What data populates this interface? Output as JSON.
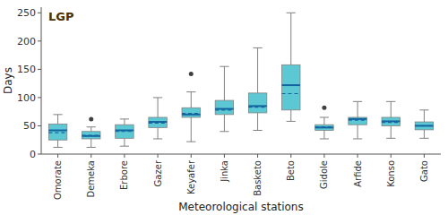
{
  "chart_data": {
    "type": "box",
    "xlabel": "Meteorological stations",
    "ylabel": "Days",
    "categories": [
      "Omorate",
      "Demeka",
      "Erbore",
      "Gazer",
      "Keyafer",
      "Jinka",
      "Basketo",
      "Beto",
      "Gidole",
      "Arfide",
      "Konso",
      "Gato"
    ],
    "boxes": [
      {
        "min": 12,
        "q1": 25,
        "median": 42,
        "mean": 38,
        "q3": 53,
        "max": 70,
        "outliers": []
      },
      {
        "min": 12,
        "q1": 27,
        "median": 32,
        "mean": 33,
        "q3": 40,
        "max": 48,
        "outliers": [
          62
        ]
      },
      {
        "min": 14,
        "q1": 28,
        "median": 42,
        "mean": 40,
        "q3": 52,
        "max": 62,
        "outliers": []
      },
      {
        "min": 27,
        "q1": 47,
        "median": 57,
        "mean": 55,
        "q3": 65,
        "max": 100,
        "outliers": []
      },
      {
        "min": 22,
        "q1": 65,
        "median": 70,
        "mean": 72,
        "q3": 82,
        "max": 110,
        "outliers": [
          142
        ]
      },
      {
        "min": 40,
        "q1": 70,
        "median": 80,
        "mean": 78,
        "q3": 95,
        "max": 155,
        "outliers": []
      },
      {
        "min": 42,
        "q1": 73,
        "median": 85,
        "mean": 83,
        "q3": 108,
        "max": 188,
        "outliers": []
      },
      {
        "min": 58,
        "q1": 78,
        "median": 122,
        "mean": 107,
        "q3": 158,
        "max": 250,
        "outliers": []
      },
      {
        "min": 27,
        "q1": 42,
        "median": 47,
        "mean": 48,
        "q3": 52,
        "max": 65,
        "outliers": [
          82
        ]
      },
      {
        "min": 27,
        "q1": 52,
        "median": 62,
        "mean": 60,
        "q3": 65,
        "max": 93,
        "outliers": []
      },
      {
        "min": 28,
        "q1": 50,
        "median": 58,
        "mean": 56,
        "q3": 65,
        "max": 93,
        "outliers": []
      },
      {
        "min": 28,
        "q1": 43,
        "median": 50,
        "mean": 50,
        "q3": 57,
        "max": 78,
        "outliers": []
      }
    ],
    "color": "#5BC8D4",
    "annotations": [
      {
        "text": "LGP",
        "color": "#4A3000"
      }
    ],
    "ylim": [
      0,
      260
    ],
    "yticks": [
      0,
      50,
      100,
      150,
      200,
      250
    ],
    "grid": false
  }
}
